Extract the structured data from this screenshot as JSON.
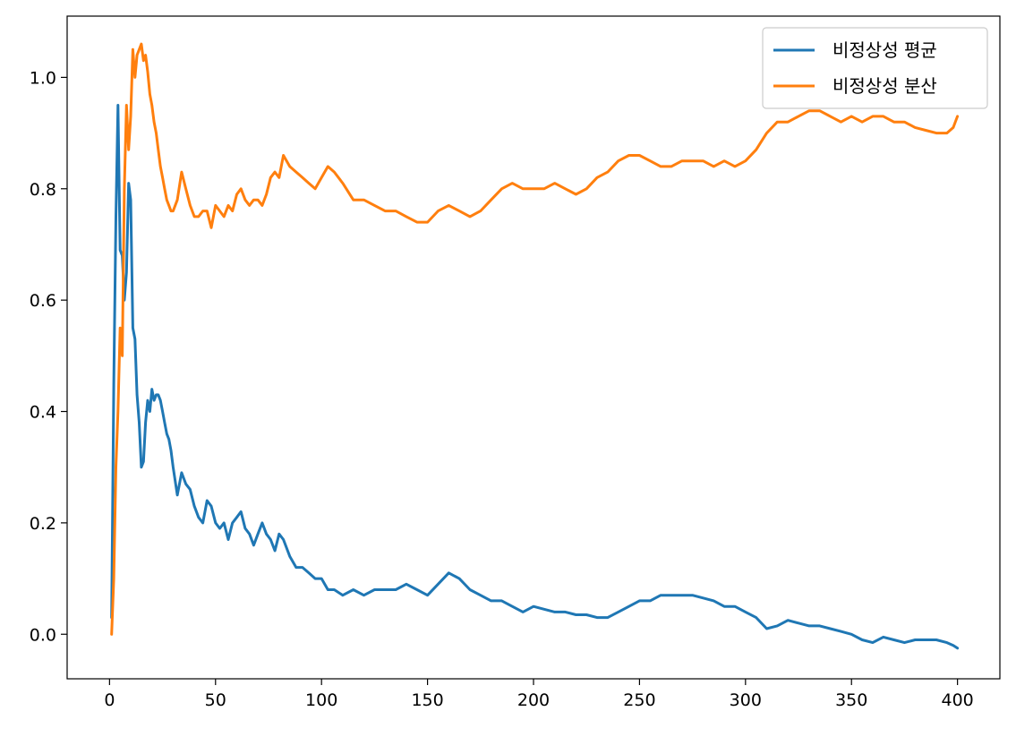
{
  "chart_data": {
    "type": "line",
    "title": "",
    "xlabel": "",
    "ylabel": "",
    "xlim": [
      -20,
      420
    ],
    "ylim": [
      -0.08,
      1.11
    ],
    "xticks": [
      0,
      50,
      100,
      150,
      200,
      250,
      300,
      350,
      400
    ],
    "xtick_labels": [
      "0",
      "50",
      "100",
      "150",
      "200",
      "250",
      "300",
      "350",
      "400"
    ],
    "yticks": [
      0.0,
      0.2,
      0.4,
      0.6,
      0.8,
      1.0
    ],
    "ytick_labels": [
      "0.0",
      "0.2",
      "0.4",
      "0.6",
      "0.8",
      "1.0"
    ],
    "grid": false,
    "legend_position": "top-right",
    "series": [
      {
        "name": "비정상성 평균",
        "color": "#1f77b4",
        "x": [
          1,
          2,
          3,
          4,
          5,
          6,
          7,
          8,
          9,
          10,
          11,
          12,
          13,
          14,
          15,
          16,
          17,
          18,
          19,
          20,
          21,
          22,
          23,
          24,
          25,
          26,
          27,
          28,
          29,
          30,
          32,
          34,
          36,
          38,
          40,
          42,
          44,
          46,
          48,
          50,
          52,
          54,
          56,
          58,
          60,
          62,
          64,
          66,
          68,
          70,
          72,
          74,
          76,
          78,
          80,
          82,
          85,
          88,
          91,
          94,
          97,
          100,
          103,
          106,
          110,
          115,
          120,
          125,
          130,
          135,
          140,
          145,
          150,
          155,
          160,
          165,
          170,
          175,
          180,
          185,
          190,
          195,
          200,
          205,
          210,
          215,
          220,
          225,
          230,
          235,
          240,
          245,
          250,
          255,
          260,
          265,
          270,
          275,
          280,
          285,
          290,
          295,
          300,
          305,
          310,
          315,
          320,
          325,
          330,
          335,
          340,
          345,
          350,
          355,
          360,
          365,
          370,
          375,
          380,
          385,
          390,
          395,
          398,
          400
        ],
        "values": [
          0.03,
          0.45,
          0.75,
          0.95,
          0.69,
          0.68,
          0.6,
          0.65,
          0.81,
          0.78,
          0.55,
          0.53,
          0.43,
          0.38,
          0.3,
          0.31,
          0.38,
          0.42,
          0.4,
          0.44,
          0.42,
          0.43,
          0.43,
          0.42,
          0.4,
          0.38,
          0.36,
          0.35,
          0.33,
          0.3,
          0.25,
          0.29,
          0.27,
          0.26,
          0.23,
          0.21,
          0.2,
          0.24,
          0.23,
          0.2,
          0.19,
          0.2,
          0.17,
          0.2,
          0.21,
          0.22,
          0.19,
          0.18,
          0.16,
          0.18,
          0.2,
          0.18,
          0.17,
          0.15,
          0.18,
          0.17,
          0.14,
          0.12,
          0.12,
          0.11,
          0.1,
          0.1,
          0.08,
          0.08,
          0.07,
          0.08,
          0.07,
          0.08,
          0.08,
          0.08,
          0.09,
          0.08,
          0.07,
          0.09,
          0.11,
          0.1,
          0.08,
          0.07,
          0.06,
          0.06,
          0.05,
          0.04,
          0.05,
          0.045,
          0.04,
          0.04,
          0.035,
          0.035,
          0.03,
          0.03,
          0.04,
          0.05,
          0.06,
          0.06,
          0.07,
          0.07,
          0.07,
          0.07,
          0.065,
          0.06,
          0.05,
          0.05,
          0.04,
          0.03,
          0.01,
          0.015,
          0.025,
          0.02,
          0.015,
          0.015,
          0.01,
          0.005,
          0.0,
          -0.01,
          -0.015,
          -0.005,
          -0.01,
          -0.015,
          -0.01,
          -0.01,
          -0.01,
          -0.015,
          -0.02,
          -0.025
        ]
      },
      {
        "name": "비정상성 분산",
        "color": "#ff7f0e",
        "x": [
          1,
          2,
          3,
          4,
          5,
          6,
          7,
          8,
          9,
          10,
          11,
          12,
          13,
          14,
          15,
          16,
          17,
          18,
          19,
          20,
          21,
          22,
          23,
          24,
          25,
          26,
          27,
          28,
          29,
          30,
          32,
          34,
          36,
          38,
          40,
          42,
          44,
          46,
          48,
          50,
          52,
          54,
          56,
          58,
          60,
          62,
          64,
          66,
          68,
          70,
          72,
          74,
          76,
          78,
          80,
          82,
          85,
          88,
          91,
          94,
          97,
          100,
          103,
          106,
          110,
          115,
          120,
          125,
          130,
          135,
          140,
          145,
          150,
          155,
          160,
          165,
          170,
          175,
          180,
          185,
          190,
          195,
          200,
          205,
          210,
          215,
          220,
          225,
          230,
          235,
          240,
          245,
          250,
          255,
          260,
          265,
          270,
          275,
          280,
          285,
          290,
          295,
          300,
          305,
          310,
          315,
          320,
          325,
          330,
          335,
          340,
          345,
          350,
          355,
          360,
          365,
          370,
          375,
          380,
          385,
          390,
          395,
          398,
          400
        ],
        "values": [
          0.0,
          0.1,
          0.3,
          0.4,
          0.55,
          0.5,
          0.8,
          0.95,
          0.87,
          0.93,
          1.05,
          1.0,
          1.04,
          1.05,
          1.06,
          1.03,
          1.04,
          1.01,
          0.97,
          0.95,
          0.92,
          0.9,
          0.87,
          0.84,
          0.82,
          0.8,
          0.78,
          0.77,
          0.76,
          0.76,
          0.78,
          0.83,
          0.8,
          0.77,
          0.75,
          0.75,
          0.76,
          0.76,
          0.73,
          0.77,
          0.76,
          0.75,
          0.77,
          0.76,
          0.79,
          0.8,
          0.78,
          0.77,
          0.78,
          0.78,
          0.77,
          0.79,
          0.82,
          0.83,
          0.82,
          0.86,
          0.84,
          0.83,
          0.82,
          0.81,
          0.8,
          0.82,
          0.84,
          0.83,
          0.81,
          0.78,
          0.78,
          0.77,
          0.76,
          0.76,
          0.75,
          0.74,
          0.74,
          0.76,
          0.77,
          0.76,
          0.75,
          0.76,
          0.78,
          0.8,
          0.81,
          0.8,
          0.8,
          0.8,
          0.81,
          0.8,
          0.79,
          0.8,
          0.82,
          0.83,
          0.85,
          0.86,
          0.86,
          0.85,
          0.84,
          0.84,
          0.85,
          0.85,
          0.85,
          0.84,
          0.85,
          0.84,
          0.85,
          0.87,
          0.9,
          0.92,
          0.92,
          0.93,
          0.94,
          0.94,
          0.93,
          0.92,
          0.93,
          0.92,
          0.93,
          0.93,
          0.92,
          0.92,
          0.91,
          0.905,
          0.9,
          0.9,
          0.91,
          0.93
        ]
      }
    ]
  }
}
